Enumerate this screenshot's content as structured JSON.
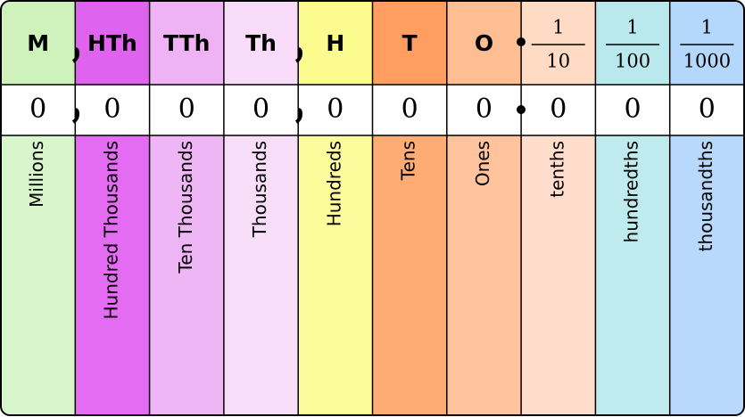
{
  "columns": [
    {
      "header": "M",
      "value": "0",
      "name": "Millions"
    },
    {
      "header": "HTh",
      "value": "0",
      "name": "Hundred Thousands"
    },
    {
      "header": "TTh",
      "value": "0",
      "name": "Ten Thousands"
    },
    {
      "header": "Th",
      "value": "0",
      "name": "Thousands"
    },
    {
      "header": "H",
      "value": "0",
      "name": "Hundreds"
    },
    {
      "header": "T",
      "value": "0",
      "name": "Tens"
    },
    {
      "header": "O",
      "value": "0",
      "name": "Ones"
    },
    {
      "numerator": "1",
      "denominator": "10",
      "value": "0",
      "name": "tenths"
    },
    {
      "numerator": "1",
      "denominator": "100",
      "value": "0",
      "name": "hundredths"
    },
    {
      "numerator": "1",
      "denominator": "1000",
      "value": "0",
      "name": "thousandths"
    }
  ]
}
